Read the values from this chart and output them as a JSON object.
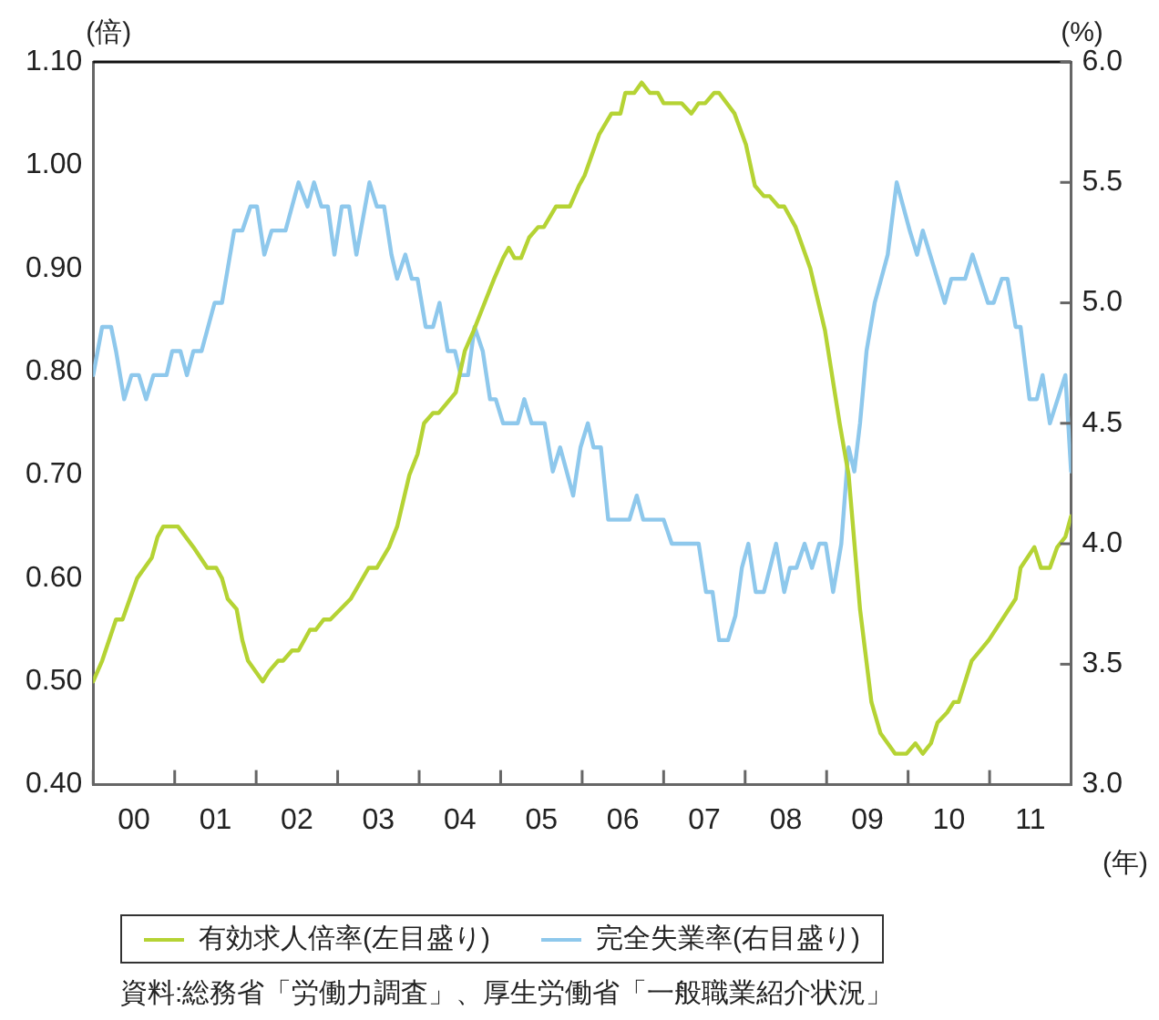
{
  "chart_data": {
    "type": "line",
    "ylabel": "(倍)",
    "y2label": "(%)",
    "xlabel": "(年)",
    "legend": "bottom",
    "marker": "none",
    "line_style": "solid",
    "grid": false,
    "xlim": [
      -0.5,
      11.5
    ],
    "xticks": [
      {
        "value": -0.5,
        "label": null
      },
      {
        "value": 0,
        "label": "00"
      },
      {
        "value": 0.5,
        "label": null
      },
      {
        "value": 1,
        "label": "01"
      },
      {
        "value": 1.5,
        "label": null
      },
      {
        "value": 2,
        "label": "02"
      },
      {
        "value": 2.5,
        "label": null
      },
      {
        "value": 3,
        "label": "03"
      },
      {
        "value": 3.5,
        "label": null
      },
      {
        "value": 4,
        "label": "04"
      },
      {
        "value": 4.5,
        "label": null
      },
      {
        "value": 5,
        "label": "05"
      },
      {
        "value": 5.5,
        "label": null
      },
      {
        "value": 6,
        "label": "06"
      },
      {
        "value": 6.5,
        "label": null
      },
      {
        "value": 7,
        "label": "07"
      },
      {
        "value": 7.5,
        "label": null
      },
      {
        "value": 8,
        "label": "08"
      },
      {
        "value": 8.5,
        "label": null
      },
      {
        "value": 9,
        "label": "09"
      },
      {
        "value": 9.5,
        "label": null
      },
      10,
      {
        "value": 10.5,
        "label": null
      },
      11,
      {
        "value": 11.5,
        "label": null
      }
    ],
    "ylim": [
      0.4,
      1.1
    ],
    "yticks": [
      {
        "value": 0.4,
        "label": "0.40"
      },
      {
        "value": 0.5,
        "label": "0.50"
      },
      {
        "value": 0.6,
        "label": "0.60"
      },
      {
        "value": 0.7,
        "label": "0.70"
      },
      {
        "value": 0.8,
        "label": "0.80"
      },
      {
        "value": 0.9,
        "label": "0.90"
      },
      {
        "value": 1,
        "label": "1.00"
      },
      {
        "value": 1.1,
        "label": "1.10"
      }
    ],
    "y2lim": [
      3,
      6
    ],
    "y2ticks": [
      {
        "value": 3,
        "label": "3.0"
      },
      {
        "value": 3.5,
        "label": "3.5"
      },
      {
        "value": 4,
        "label": "4.0"
      },
      {
        "value": 4.5,
        "label": "4.5"
      },
      {
        "value": 5,
        "label": "5.0"
      },
      {
        "value": 5.5,
        "label": "5.5"
      },
      {
        "value": 6,
        "label": "6.0"
      }
    ],
    "series": [
      {
        "name": "有効求人倍率(左目盛り)",
        "color": "#b5d334",
        "axis": "y",
        "x": [
          -0.5,
          -0.39,
          -0.22,
          -0.14,
          0.04,
          0.22,
          0.29,
          0.36,
          0.54,
          0.73,
          0.9,
          1.01,
          1.08,
          1.15,
          1.26,
          1.33,
          1.4,
          1.58,
          1.66,
          1.77,
          1.83,
          1.94,
          2.02,
          2.16,
          2.23,
          2.33,
          2.41,
          2.66,
          2.88,
          2.98,
          3.13,
          3.23,
          3.38,
          3.48,
          3.56,
          3.67,
          3.74,
          3.95,
          4.06,
          4.17,
          4.32,
          4.42,
          4.53,
          4.6,
          4.67,
          4.75,
          4.85,
          4.96,
          5.03,
          5.18,
          5.35,
          5.46,
          5.53,
          5.71,
          5.86,
          5.97,
          6.03,
          6.14,
          6.23,
          6.33,
          6.43,
          6.5,
          6.72,
          6.84,
          6.93,
          7.01,
          7.12,
          7.18,
          7.37,
          7.51,
          7.62,
          7.73,
          7.8,
          7.91,
          7.98,
          8.12,
          8.3,
          8.48,
          8.6,
          8.66,
          8.77,
          8.91,
          9.05,
          9.16,
          9.34,
          9.48,
          9.59,
          9.68,
          9.78,
          9.86,
          9.98,
          10.06,
          10.12,
          10.28,
          10.49,
          10.82,
          10.88,
          11.05,
          11.13,
          11.24,
          11.33,
          11.43,
          11.5
        ],
        "values": [
          0.5,
          0.52,
          0.56,
          0.56,
          0.6,
          0.62,
          0.64,
          0.65,
          0.65,
          0.63,
          0.61,
          0.61,
          0.6,
          0.58,
          0.57,
          0.54,
          0.52,
          0.5,
          0.51,
          0.52,
          0.52,
          0.53,
          0.53,
          0.55,
          0.55,
          0.56,
          0.56,
          0.58,
          0.61,
          0.61,
          0.63,
          0.65,
          0.7,
          0.72,
          0.75,
          0.76,
          0.76,
          0.78,
          0.82,
          0.84,
          0.87,
          0.89,
          0.91,
          0.92,
          0.91,
          0.91,
          0.93,
          0.94,
          0.94,
          0.96,
          0.96,
          0.98,
          0.99,
          1.03,
          1.05,
          1.05,
          1.07,
          1.07,
          1.08,
          1.07,
          1.07,
          1.06,
          1.06,
          1.05,
          1.06,
          1.06,
          1.07,
          1.07,
          1.05,
          1.02,
          0.98,
          0.97,
          0.97,
          0.96,
          0.96,
          0.94,
          0.9,
          0.84,
          0.78,
          0.75,
          0.7,
          0.57,
          0.48,
          0.45,
          0.43,
          0.43,
          0.44,
          0.43,
          0.44,
          0.46,
          0.47,
          0.48,
          0.48,
          0.52,
          0.54,
          0.58,
          0.61,
          0.63,
          0.61,
          0.61,
          0.63,
          0.64,
          0.66
        ]
      },
      {
        "name": "完全失業率(右目盛り)",
        "color": "#8ec8ec",
        "axis": "y2",
        "x": [
          -0.5,
          -0.39,
          -0.28,
          -0.22,
          -0.12,
          -0.03,
          0.06,
          0.15,
          0.24,
          0.4,
          0.47,
          0.57,
          0.65,
          0.73,
          0.83,
          0.99,
          1.08,
          1.23,
          1.33,
          1.43,
          1.51,
          1.6,
          1.69,
          1.86,
          2.02,
          2.13,
          2.21,
          2.3,
          2.38,
          2.46,
          2.55,
          2.64,
          2.73,
          2.89,
          2.98,
          3.07,
          3.16,
          3.23,
          3.33,
          3.41,
          3.48,
          3.58,
          3.67,
          3.75,
          3.85,
          3.94,
          4.01,
          4.1,
          4.18,
          4.28,
          4.37,
          4.44,
          4.53,
          4.71,
          4.79,
          4.88,
          5.04,
          5.14,
          5.23,
          5.39,
          5.48,
          5.57,
          5.64,
          5.73,
          5.82,
          6.08,
          6.17,
          6.25,
          6.5,
          6.6,
          6.93,
          7.02,
          7.1,
          7.18,
          7.29,
          7.38,
          7.46,
          7.54,
          7.63,
          7.73,
          7.88,
          7.98,
          8.05,
          8.13,
          8.23,
          8.32,
          8.41,
          8.49,
          8.58,
          8.68,
          8.77,
          8.84,
          8.91,
          8.99,
          9.09,
          9.25,
          9.36,
          9.52,
          9.61,
          9.68,
          9.95,
          10.03,
          10.2,
          10.29,
          10.48,
          10.55,
          10.65,
          10.72,
          10.82,
          10.88,
          10.99,
          11.08,
          11.15,
          11.24,
          11.43,
          11.5
        ],
        "values": [
          4.7,
          4.9,
          4.9,
          4.8,
          4.6,
          4.7,
          4.7,
          4.6,
          4.7,
          4.7,
          4.8,
          4.8,
          4.7,
          4.8,
          4.8,
          5.0,
          5.0,
          5.3,
          5.3,
          5.4,
          5.4,
          5.2,
          5.3,
          5.3,
          5.5,
          5.4,
          5.5,
          5.4,
          5.4,
          5.2,
          5.4,
          5.4,
          5.2,
          5.5,
          5.4,
          5.4,
          5.2,
          5.1,
          5.2,
          5.1,
          5.1,
          4.9,
          4.9,
          5.0,
          4.8,
          4.8,
          4.7,
          4.7,
          4.9,
          4.8,
          4.6,
          4.6,
          4.5,
          4.5,
          4.6,
          4.5,
          4.5,
          4.3,
          4.4,
          4.2,
          4.4,
          4.5,
          4.4,
          4.4,
          4.1,
          4.1,
          4.2,
          4.1,
          4.1,
          4.0,
          4.0,
          3.8,
          3.8,
          3.6,
          3.6,
          3.7,
          3.9,
          4.0,
          3.8,
          3.8,
          4.0,
          3.8,
          3.9,
          3.9,
          4.0,
          3.9,
          4.0,
          4.0,
          3.8,
          4.0,
          4.4,
          4.3,
          4.5,
          4.8,
          5.0,
          5.2,
          5.5,
          5.3,
          5.2,
          5.3,
          5.0,
          5.1,
          5.1,
          5.2,
          5.0,
          5.0,
          5.1,
          5.1,
          4.9,
          4.9,
          4.6,
          4.6,
          4.7,
          4.5,
          4.7,
          4.3
        ]
      }
    ],
    "annotations": [
      "資料:総務省「労働力調査」、厚生労働省「一般職業紹介状況」"
    ]
  }
}
